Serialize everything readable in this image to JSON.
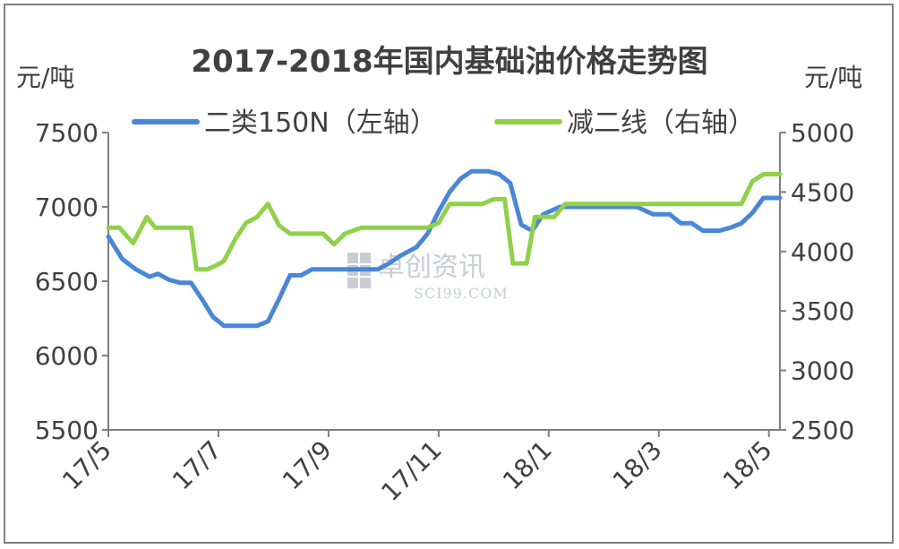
{
  "chart_data": {
    "type": "line",
    "title": "2017-2018年国内基础油价格走势图",
    "left_unit": "元/吨",
    "right_unit": "元/吨",
    "left_axis": {
      "min": 5500,
      "max": 7500,
      "ticks": [
        5500,
        6000,
        6500,
        7000,
        7500
      ]
    },
    "right_axis": {
      "min": 2500,
      "max": 5000,
      "ticks": [
        2500,
        3000,
        3500,
        4000,
        4500,
        5000
      ]
    },
    "x_ticks": [
      "17/5",
      "17/7",
      "17/9",
      "17/11",
      "18/1",
      "18/3",
      "18/5"
    ],
    "x_range": [
      0,
      12.2
    ],
    "legend_position": "top",
    "grid": false,
    "series": [
      {
        "name": "二类150N（左轴）",
        "axis": "left",
        "color": "#4a86d8",
        "points": [
          [
            0,
            6800
          ],
          [
            0.25,
            6650
          ],
          [
            0.5,
            6580
          ],
          [
            0.75,
            6530
          ],
          [
            0.9,
            6550
          ],
          [
            1.1,
            6510
          ],
          [
            1.3,
            6490
          ],
          [
            1.5,
            6490
          ],
          [
            1.7,
            6380
          ],
          [
            1.9,
            6260
          ],
          [
            2.1,
            6200
          ],
          [
            2.4,
            6200
          ],
          [
            2.7,
            6200
          ],
          [
            2.9,
            6230
          ],
          [
            3.1,
            6380
          ],
          [
            3.3,
            6540
          ],
          [
            3.5,
            6540
          ],
          [
            3.7,
            6580
          ],
          [
            4.0,
            6580
          ],
          [
            4.3,
            6580
          ],
          [
            4.6,
            6580
          ],
          [
            4.9,
            6580
          ],
          [
            5.1,
            6620
          ],
          [
            5.3,
            6670
          ],
          [
            5.6,
            6730
          ],
          [
            5.8,
            6820
          ],
          [
            6.0,
            6970
          ],
          [
            6.2,
            7100
          ],
          [
            6.4,
            7190
          ],
          [
            6.6,
            7240
          ],
          [
            6.9,
            7240
          ],
          [
            7.1,
            7220
          ],
          [
            7.3,
            7160
          ],
          [
            7.5,
            6880
          ],
          [
            7.7,
            6840
          ],
          [
            7.9,
            6950
          ],
          [
            8.2,
            7000
          ],
          [
            8.5,
            7000
          ],
          [
            8.8,
            7000
          ],
          [
            9.1,
            7000
          ],
          [
            9.4,
            7000
          ],
          [
            9.6,
            7000
          ],
          [
            9.9,
            6950
          ],
          [
            10.2,
            6950
          ],
          [
            10.4,
            6890
          ],
          [
            10.6,
            6890
          ],
          [
            10.8,
            6840
          ],
          [
            11.1,
            6840
          ],
          [
            11.3,
            6860
          ],
          [
            11.5,
            6890
          ],
          [
            11.7,
            6960
          ],
          [
            11.9,
            7060
          ],
          [
            12.2,
            7060
          ]
        ]
      },
      {
        "name": "减二线（右轴）",
        "axis": "right",
        "color": "#8fd14a",
        "points": [
          [
            0,
            4200
          ],
          [
            0.2,
            4200
          ],
          [
            0.45,
            4070
          ],
          [
            0.7,
            4290
          ],
          [
            0.85,
            4200
          ],
          [
            1.2,
            4200
          ],
          [
            1.4,
            4200
          ],
          [
            1.5,
            4200
          ],
          [
            1.6,
            3850
          ],
          [
            1.8,
            3850
          ],
          [
            1.95,
            3880
          ],
          [
            2.1,
            3920
          ],
          [
            2.3,
            4100
          ],
          [
            2.5,
            4240
          ],
          [
            2.7,
            4290
          ],
          [
            2.9,
            4400
          ],
          [
            3.1,
            4220
          ],
          [
            3.3,
            4150
          ],
          [
            3.6,
            4150
          ],
          [
            3.9,
            4150
          ],
          [
            4.1,
            4060
          ],
          [
            4.3,
            4150
          ],
          [
            4.6,
            4200
          ],
          [
            4.9,
            4200
          ],
          [
            5.2,
            4200
          ],
          [
            5.5,
            4200
          ],
          [
            5.8,
            4200
          ],
          [
            6.0,
            4240
          ],
          [
            6.2,
            4400
          ],
          [
            6.5,
            4400
          ],
          [
            6.8,
            4400
          ],
          [
            7.0,
            4440
          ],
          [
            7.2,
            4440
          ],
          [
            7.35,
            3900
          ],
          [
            7.6,
            3900
          ],
          [
            7.75,
            4290
          ],
          [
            7.9,
            4290
          ],
          [
            8.1,
            4290
          ],
          [
            8.3,
            4400
          ],
          [
            8.6,
            4400
          ],
          [
            9.0,
            4400
          ],
          [
            9.4,
            4400
          ],
          [
            9.8,
            4400
          ],
          [
            10.2,
            4400
          ],
          [
            10.6,
            4400
          ],
          [
            11.0,
            4400
          ],
          [
            11.5,
            4400
          ],
          [
            11.7,
            4590
          ],
          [
            11.9,
            4650
          ],
          [
            12.2,
            4650
          ]
        ]
      }
    ],
    "watermark": {
      "cn": "卓创资讯",
      "en": "SCI99.COM"
    }
  }
}
